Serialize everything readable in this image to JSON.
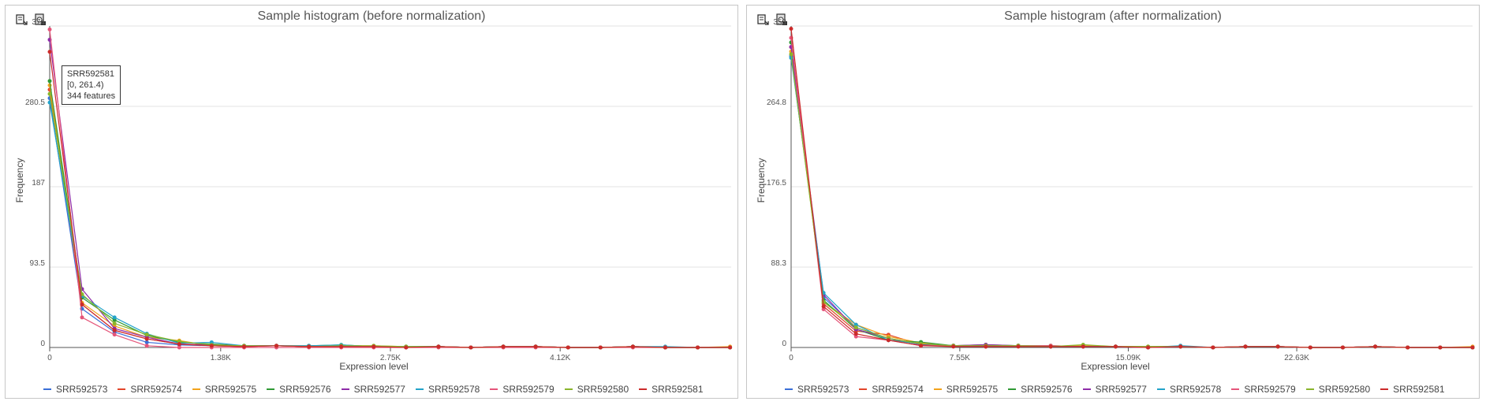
{
  "colors": {
    "SRR592573": "#3a6fd8",
    "SRR592574": "#e2452a",
    "SRR592575": "#f2a31b",
    "SRR592576": "#2f9a35",
    "SRR592577": "#8e2ba8",
    "SRR592578": "#22a3c9",
    "SRR592579": "#e5557a",
    "SRR592580": "#8ab52c",
    "SRR592581": "#cc2a2a"
  },
  "icons": {
    "export": "export-icon",
    "save": "save-image-icon"
  },
  "tooltip": {
    "sample": "SRR592581",
    "bin": "[0, 261.4)",
    "count": "344 features"
  },
  "chart_data": [
    {
      "type": "line",
      "title": "Sample histogram (before normalization)",
      "xlabel": "Expression level",
      "ylabel": "Frequency",
      "ylim": [
        0,
        374
      ],
      "yticks": [
        0,
        93.5,
        187,
        280.5,
        374
      ],
      "ytick_labels": [
        "0",
        "93.5",
        "187",
        "280.5",
        "374"
      ],
      "xlim": [
        0,
        5500
      ],
      "xticks": [
        0,
        1380,
        2750,
        4120
      ],
      "xtick_labels": [
        "0",
        "1.38K",
        "2.75K",
        "4.12K"
      ],
      "x": [
        0,
        261,
        523,
        784,
        1046,
        1307,
        1569,
        1830,
        2092,
        2353,
        2615,
        2876,
        3138,
        3399,
        3661,
        3922,
        4184,
        4445,
        4707,
        4968,
        5230,
        5491
      ],
      "grid": true,
      "legend_position": "bottom",
      "series": [
        {
          "name": "SRR592573",
          "values": [
            290,
            45,
            18,
            6,
            3,
            2,
            1,
            2,
            1,
            1,
            1,
            0,
            1,
            0,
            1,
            1,
            0,
            0,
            1,
            0,
            0,
            0
          ]
        },
        {
          "name": "SRR592574",
          "values": [
            300,
            50,
            20,
            10,
            4,
            2,
            1,
            2,
            1,
            1,
            1,
            0,
            1,
            0,
            1,
            1,
            0,
            0,
            1,
            0,
            0,
            0
          ]
        },
        {
          "name": "SRR592575",
          "values": [
            305,
            52,
            25,
            12,
            8,
            2,
            2,
            2,
            1,
            2,
            2,
            1,
            1,
            0,
            1,
            1,
            0,
            0,
            1,
            0,
            0,
            1
          ]
        },
        {
          "name": "SRR592576",
          "values": [
            310,
            58,
            32,
            14,
            6,
            4,
            2,
            2,
            2,
            3,
            1,
            1,
            1,
            0,
            1,
            1,
            0,
            0,
            1,
            0,
            0,
            0
          ]
        },
        {
          "name": "SRR592577",
          "values": [
            358,
            68,
            22,
            12,
            4,
            3,
            2,
            2,
            1,
            1,
            1,
            0,
            1,
            0,
            1,
            1,
            0,
            0,
            1,
            0,
            0,
            0
          ]
        },
        {
          "name": "SRR592578",
          "values": [
            285,
            60,
            35,
            16,
            5,
            6,
            2,
            2,
            2,
            3,
            1,
            1,
            1,
            0,
            1,
            1,
            0,
            0,
            1,
            1,
            0,
            0
          ]
        },
        {
          "name": "SRR592579",
          "values": [
            370,
            35,
            15,
            2,
            0,
            0,
            0,
            0,
            0,
            0,
            0,
            0,
            0,
            0,
            0,
            0,
            0,
            0,
            0,
            0,
            0,
            0
          ]
        },
        {
          "name": "SRR592580",
          "values": [
            295,
            62,
            28,
            15,
            7,
            3,
            2,
            2,
            1,
            2,
            2,
            1,
            1,
            0,
            1,
            1,
            0,
            0,
            1,
            0,
            0,
            0
          ]
        },
        {
          "name": "SRR592581",
          "values": [
            344,
            50,
            20,
            10,
            4,
            2,
            1,
            2,
            1,
            1,
            1,
            0,
            1,
            0,
            1,
            1,
            0,
            0,
            1,
            0,
            0,
            0
          ]
        }
      ]
    },
    {
      "type": "line",
      "title": "Sample histogram (after normalization)",
      "xlabel": "Expression level",
      "ylabel": "Frequency",
      "ylim": [
        0,
        353
      ],
      "yticks": [
        0,
        88.3,
        176.5,
        264.8,
        353
      ],
      "ytick_labels": [
        "0",
        "88.3",
        "176.5",
        "264.8",
        "353"
      ],
      "xlim": [
        0,
        30500
      ],
      "xticks": [
        0,
        7550,
        15090,
        22630
      ],
      "xtick_labels": [
        "0",
        "7.55K",
        "15.09K",
        "22.63K"
      ],
      "x": [
        0,
        1452,
        2905,
        4357,
        5810,
        7262,
        8714,
        10167,
        11619,
        13071,
        14524,
        15976,
        17429,
        18881,
        20333,
        21786,
        23238,
        24690,
        26143,
        27595,
        29048,
        30500
      ],
      "grid": true,
      "legend_position": "bottom",
      "series": [
        {
          "name": "SRR592573",
          "values": [
            320,
            55,
            22,
            10,
            4,
            2,
            1,
            2,
            1,
            1,
            1,
            0,
            1,
            0,
            1,
            1,
            0,
            0,
            1,
            0,
            0,
            0
          ]
        },
        {
          "name": "SRR592574",
          "values": [
            330,
            48,
            18,
            14,
            3,
            2,
            1,
            2,
            1,
            1,
            1,
            0,
            1,
            0,
            1,
            1,
            0,
            0,
            1,
            0,
            0,
            0
          ]
        },
        {
          "name": "SRR592575",
          "values": [
            325,
            50,
            25,
            12,
            5,
            2,
            2,
            2,
            1,
            2,
            1,
            1,
            1,
            0,
            1,
            1,
            0,
            0,
            1,
            0,
            0,
            1
          ]
        },
        {
          "name": "SRR592576",
          "values": [
            335,
            52,
            20,
            8,
            6,
            2,
            3,
            2,
            2,
            1,
            1,
            1,
            1,
            0,
            1,
            1,
            0,
            0,
            1,
            0,
            0,
            0
          ]
        },
        {
          "name": "SRR592577",
          "values": [
            330,
            58,
            20,
            10,
            3,
            2,
            3,
            2,
            1,
            1,
            1,
            0,
            1,
            0,
            1,
            1,
            0,
            0,
            1,
            0,
            0,
            0
          ]
        },
        {
          "name": "SRR592578",
          "values": [
            318,
            60,
            25,
            8,
            4,
            2,
            1,
            2,
            1,
            1,
            1,
            0,
            2,
            0,
            1,
            1,
            0,
            0,
            1,
            0,
            0,
            0
          ]
        },
        {
          "name": "SRR592579",
          "values": [
            340,
            42,
            12,
            8,
            2,
            2,
            1,
            2,
            2,
            1,
            1,
            0,
            1,
            0,
            1,
            1,
            0,
            0,
            1,
            0,
            0,
            0
          ]
        },
        {
          "name": "SRR592580",
          "values": [
            322,
            50,
            22,
            10,
            4,
            2,
            2,
            2,
            1,
            3,
            1,
            1,
            1,
            0,
            1,
            1,
            0,
            0,
            1,
            0,
            0,
            0
          ]
        },
        {
          "name": "SRR592581",
          "values": [
            350,
            45,
            15,
            8,
            2,
            1,
            1,
            1,
            1,
            1,
            1,
            0,
            1,
            0,
            1,
            1,
            0,
            0,
            1,
            0,
            0,
            0
          ]
        }
      ]
    }
  ]
}
